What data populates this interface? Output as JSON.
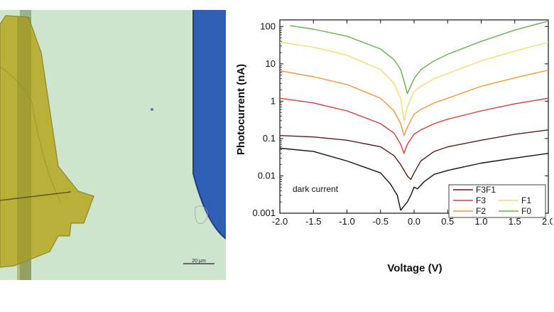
{
  "image": {
    "scale_bar_label": "20 µm",
    "colors": {
      "background": "#cfe4cc",
      "flake": "#b9b03a",
      "flake_dark": "#8c8a2a",
      "electrode": "#2f5fb5"
    }
  },
  "chart_data": {
    "type": "line",
    "xlabel": "Voltage (V)",
    "ylabel": "Photocurrent (nA)",
    "xlim": [
      -2.0,
      2.0
    ],
    "ylim": [
      0.001,
      150
    ],
    "yscale": "log",
    "xticks": [
      "-2.0",
      "-1.5",
      "-1.0",
      "-0.5",
      "0.0",
      "0.5",
      "1.0",
      "1.5",
      "2.0"
    ],
    "yticks": [
      "0.001",
      "0.01",
      "0.1",
      "1",
      "10",
      "100"
    ],
    "annotation": "dark current",
    "legend": "bottom-right",
    "series": [
      {
        "name": "F0",
        "color": "#6ab04c",
        "points": [
          [
            -1.85,
            105
          ],
          [
            -1.5,
            85
          ],
          [
            -1.0,
            55
          ],
          [
            -0.5,
            25
          ],
          [
            -0.3,
            13
          ],
          [
            -0.2,
            7
          ],
          [
            -0.15,
            3.5
          ],
          [
            -0.1,
            1.6
          ],
          [
            0.0,
            4
          ],
          [
            0.1,
            7
          ],
          [
            0.3,
            12
          ],
          [
            0.5,
            18
          ],
          [
            1.0,
            40
          ],
          [
            1.5,
            80
          ],
          [
            2.0,
            140
          ]
        ]
      },
      {
        "name": "F1",
        "color": "#f2dc72",
        "points": [
          [
            -2.0,
            38
          ],
          [
            -1.5,
            28
          ],
          [
            -1.0,
            17
          ],
          [
            -0.5,
            7
          ],
          [
            -0.3,
            3
          ],
          [
            -0.2,
            1.2
          ],
          [
            -0.15,
            0.3
          ],
          [
            -0.1,
            0.7
          ],
          [
            0.0,
            1.8
          ],
          [
            0.1,
            2.5
          ],
          [
            0.3,
            4
          ],
          [
            0.5,
            5.5
          ],
          [
            1.0,
            12
          ],
          [
            1.5,
            22
          ],
          [
            2.0,
            38
          ]
        ]
      },
      {
        "name": "F2",
        "color": "#f0963c",
        "points": [
          [
            -2.0,
            6.5
          ],
          [
            -1.5,
            4.5
          ],
          [
            -1.0,
            2.8
          ],
          [
            -0.5,
            1.2
          ],
          [
            -0.3,
            0.55
          ],
          [
            -0.2,
            0.25
          ],
          [
            -0.15,
            0.12
          ],
          [
            -0.1,
            0.2
          ],
          [
            0.0,
            0.45
          ],
          [
            0.1,
            0.6
          ],
          [
            0.3,
            0.9
          ],
          [
            0.5,
            1.2
          ],
          [
            1.0,
            2.5
          ],
          [
            1.5,
            4.2
          ],
          [
            2.0,
            6.8
          ]
        ]
      },
      {
        "name": "F3",
        "color": "#d63b3b",
        "points": [
          [
            -2.0,
            1.2
          ],
          [
            -1.5,
            0.9
          ],
          [
            -1.0,
            0.55
          ],
          [
            -0.5,
            0.25
          ],
          [
            -0.3,
            0.14
          ],
          [
            -0.2,
            0.07
          ],
          [
            -0.15,
            0.04
          ],
          [
            -0.1,
            0.07
          ],
          [
            0.0,
            0.13
          ],
          [
            0.1,
            0.17
          ],
          [
            0.3,
            0.25
          ],
          [
            0.5,
            0.33
          ],
          [
            1.0,
            0.55
          ],
          [
            1.5,
            0.85
          ],
          [
            2.0,
            1.2
          ]
        ]
      },
      {
        "name": "F3F1",
        "color": "#5c1a1a",
        "points": [
          [
            -2.0,
            0.12
          ],
          [
            -1.5,
            0.11
          ],
          [
            -1.0,
            0.09
          ],
          [
            -0.5,
            0.06
          ],
          [
            -0.3,
            0.035
          ],
          [
            -0.2,
            0.02
          ],
          [
            -0.1,
            0.01
          ],
          [
            -0.05,
            0.008
          ],
          [
            0.0,
            0.012
          ],
          [
            0.1,
            0.025
          ],
          [
            0.3,
            0.045
          ],
          [
            0.5,
            0.06
          ],
          [
            1.0,
            0.09
          ],
          [
            1.5,
            0.13
          ],
          [
            2.0,
            0.17
          ]
        ]
      },
      {
        "name": "dark current",
        "color": "#111111",
        "points": [
          [
            -2.0,
            0.055
          ],
          [
            -1.5,
            0.045
          ],
          [
            -1.0,
            0.025
          ],
          [
            -0.5,
            0.012
          ],
          [
            -0.35,
            0.006
          ],
          [
            -0.25,
            0.003
          ],
          [
            -0.2,
            0.0012
          ],
          [
            -0.1,
            0.002
          ],
          [
            -0.05,
            0.003
          ],
          [
            0.0,
            0.005
          ],
          [
            0.05,
            0.0045
          ],
          [
            0.15,
            0.007
          ],
          [
            0.3,
            0.011
          ],
          [
            0.5,
            0.014
          ],
          [
            1.0,
            0.022
          ],
          [
            1.5,
            0.03
          ],
          [
            2.0,
            0.04
          ]
        ]
      }
    ],
    "legend_order": [
      "F3F1",
      "F3",
      "F1",
      "F2",
      "F0"
    ]
  }
}
